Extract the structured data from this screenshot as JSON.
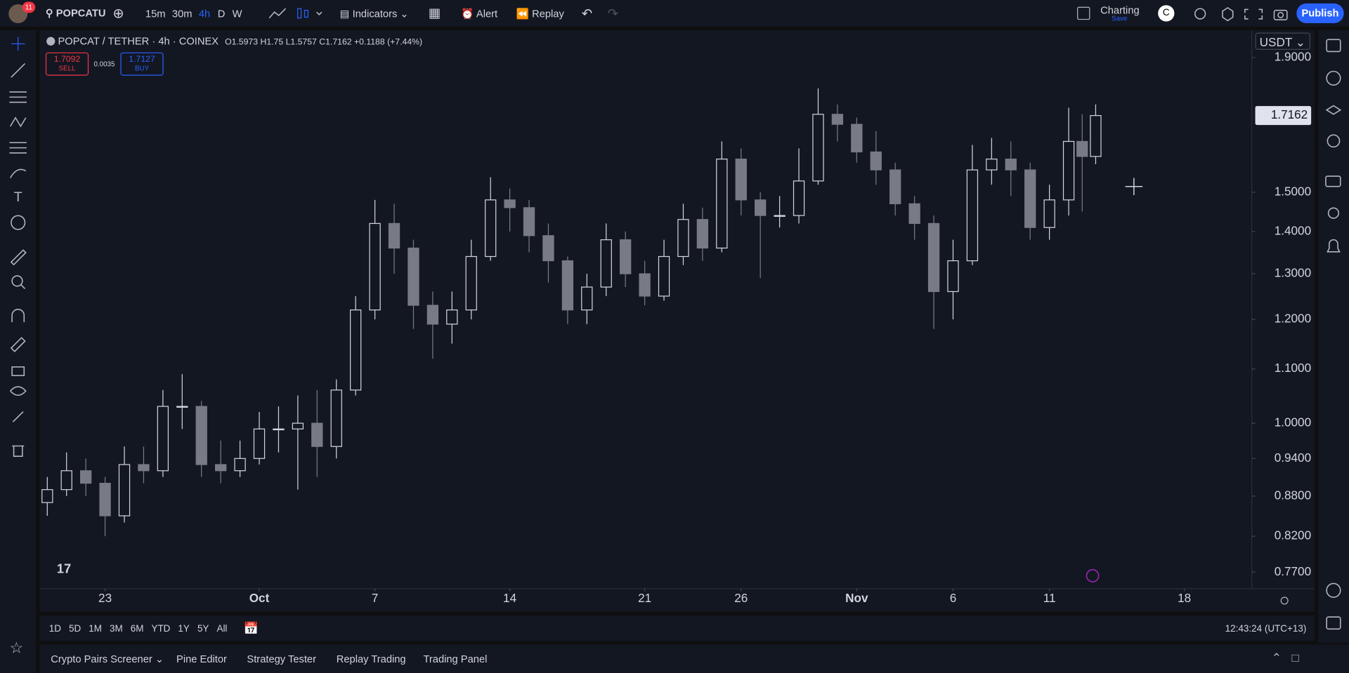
{
  "topbar": {
    "badge": "11",
    "symbol": "POPCATU",
    "intervals": [
      "15m",
      "30m",
      "4h",
      "D",
      "W"
    ],
    "indicators": "Indicators",
    "alert": "Alert",
    "replay": "Replay",
    "layout": "Charting",
    "save": "Save",
    "avatar": "C",
    "publish": "Publish"
  },
  "legend": {
    "title": "POPCAT / TETHER · 4h · COINEX",
    "labels": [
      "O",
      "H",
      "L",
      "C"
    ],
    "change": "+0.1188 (+7.44%)",
    "sell": "1.7092",
    "sell_label": "SELL",
    "spread": "0.0035",
    "buy": "1.7127",
    "buy_label": "BUY"
  },
  "currency": "USDT",
  "ranges": [
    "1D",
    "5D",
    "1M",
    "3M",
    "6M",
    "YTD",
    "1Y",
    "5Y",
    "All"
  ],
  "clock": "12:43:24 (UTC+13)",
  "tabs": [
    "Crypto Pairs Screener",
    "Pine Editor",
    "Strategy Tester",
    "Replay Trading",
    "Trading Panel"
  ],
  "chart_data": {
    "type": "candlestick",
    "log_scale": true,
    "grid": false,
    "up_color": "#d1d4dc",
    "down_color": "#787b86",
    "xlim": [
      19.6,
      82.5
    ],
    "xticks": [
      23,
      {
        "value": 31,
        "label": "Oct"
      },
      {
        "value": 37,
        "label": "7"
      },
      {
        "value": 44,
        "label": "14"
      },
      {
        "value": 51,
        "label": "21"
      },
      {
        "value": 56,
        "label": "26"
      },
      {
        "value": 62,
        "label": "Nov"
      },
      {
        "value": 67,
        "label": "6"
      },
      {
        "value": 72,
        "label": "11"
      },
      {
        "value": 79,
        "label": "18"
      }
    ],
    "ylim": [
      0.748,
      1.994
    ],
    "yticks": [
      {
        "value": 0.77,
        "label": "0.7700"
      },
      {
        "value": 0.82,
        "label": "0.8200"
      },
      {
        "value": 0.88,
        "label": "0.8800"
      },
      {
        "value": 0.94,
        "label": "0.9400"
      },
      {
        "value": 1,
        "label": "1.0000"
      },
      {
        "value": 1.1,
        "label": "1.1000"
      },
      {
        "value": 1.2,
        "label": "1.2000"
      },
      {
        "value": 1.3,
        "label": "1.3000"
      },
      {
        "value": 1.4,
        "label": "1.4000"
      },
      {
        "value": 1.5,
        "label": "1.5000"
      },
      {
        "value": 1.9,
        "label": "1.9000"
      }
    ],
    "candles": [
      {
        "x": 20,
        "open": 0.87,
        "high": 0.91,
        "low": 0.85,
        "close": 0.89
      },
      {
        "x": 21,
        "open": 0.89,
        "high": 0.95,
        "low": 0.88,
        "close": 0.92
      },
      {
        "x": 22,
        "open": 0.92,
        "high": 0.94,
        "low": 0.88,
        "close": 0.9
      },
      {
        "x": 23,
        "open": 0.9,
        "high": 0.91,
        "low": 0.82,
        "close": 0.85
      },
      {
        "x": 24,
        "open": 0.85,
        "high": 0.96,
        "low": 0.84,
        "close": 0.93
      },
      {
        "x": 25,
        "open": 0.93,
        "high": 0.96,
        "low": 0.9,
        "close": 0.92
      },
      {
        "x": 26,
        "open": 0.92,
        "high": 1.06,
        "low": 0.91,
        "close": 1.03
      },
      {
        "x": 27,
        "open": 1.03,
        "high": 1.09,
        "low": 0.99,
        "close": 1.03
      },
      {
        "x": 28,
        "open": 1.03,
        "high": 1.04,
        "low": 0.91,
        "close": 0.93
      },
      {
        "x": 29,
        "open": 0.93,
        "high": 0.97,
        "low": 0.9,
        "close": 0.92
      },
      {
        "x": 30,
        "open": 0.92,
        "high": 0.97,
        "low": 0.91,
        "close": 0.94
      },
      {
        "x": 31,
        "open": 0.94,
        "high": 1.02,
        "low": 0.93,
        "close": 0.99
      },
      {
        "x": 32,
        "open": 0.99,
        "high": 1.03,
        "low": 0.95,
        "close": 0.99
      },
      {
        "x": 33,
        "open": 0.99,
        "high": 1.05,
        "low": 0.89,
        "close": 1.0
      },
      {
        "x": 34,
        "open": 1.0,
        "high": 1.06,
        "low": 0.91,
        "close": 0.96
      },
      {
        "x": 35,
        "open": 0.96,
        "high": 1.08,
        "low": 0.94,
        "close": 1.06
      },
      {
        "x": 36,
        "open": 1.06,
        "high": 1.25,
        "low": 1.05,
        "close": 1.22
      },
      {
        "x": 37,
        "open": 1.22,
        "high": 1.48,
        "low": 1.2,
        "close": 1.42
      },
      {
        "x": 38,
        "open": 1.42,
        "high": 1.47,
        "low": 1.3,
        "close": 1.36
      },
      {
        "x": 39,
        "open": 1.36,
        "high": 1.38,
        "low": 1.18,
        "close": 1.23
      },
      {
        "x": 40,
        "open": 1.23,
        "high": 1.26,
        "low": 1.12,
        "close": 1.19
      },
      {
        "x": 41,
        "open": 1.19,
        "high": 1.26,
        "low": 1.15,
        "close": 1.22
      },
      {
        "x": 42,
        "open": 1.22,
        "high": 1.38,
        "low": 1.2,
        "close": 1.34
      },
      {
        "x": 43,
        "open": 1.34,
        "high": 1.54,
        "low": 1.33,
        "close": 1.48
      },
      {
        "x": 44,
        "open": 1.48,
        "high": 1.51,
        "low": 1.4,
        "close": 1.46
      },
      {
        "x": 45,
        "open": 1.46,
        "high": 1.48,
        "low": 1.35,
        "close": 1.39
      },
      {
        "x": 46,
        "open": 1.39,
        "high": 1.42,
        "low": 1.28,
        "close": 1.33
      },
      {
        "x": 47,
        "open": 1.33,
        "high": 1.34,
        "low": 1.19,
        "close": 1.22
      },
      {
        "x": 48,
        "open": 1.22,
        "high": 1.3,
        "low": 1.19,
        "close": 1.27
      },
      {
        "x": 49,
        "open": 1.27,
        "high": 1.42,
        "low": 1.25,
        "close": 1.38
      },
      {
        "x": 50,
        "open": 1.38,
        "high": 1.4,
        "low": 1.27,
        "close": 1.3
      },
      {
        "x": 51,
        "open": 1.3,
        "high": 1.33,
        "low": 1.23,
        "close": 1.25
      },
      {
        "x": 52,
        "open": 1.25,
        "high": 1.38,
        "low": 1.24,
        "close": 1.34
      },
      {
        "x": 53,
        "open": 1.34,
        "high": 1.47,
        "low": 1.32,
        "close": 1.43
      },
      {
        "x": 54,
        "open": 1.43,
        "high": 1.46,
        "low": 1.33,
        "close": 1.36
      },
      {
        "x": 55,
        "open": 1.36,
        "high": 1.64,
        "low": 1.35,
        "close": 1.59
      },
      {
        "x": 56,
        "open": 1.59,
        "high": 1.62,
        "low": 1.44,
        "close": 1.48
      },
      {
        "x": 57,
        "open": 1.48,
        "high": 1.5,
        "low": 1.29,
        "close": 1.44
      },
      {
        "x": 58,
        "open": 1.44,
        "high": 1.49,
        "low": 1.41,
        "close": 1.44
      },
      {
        "x": 59,
        "open": 1.44,
        "high": 1.62,
        "low": 1.42,
        "close": 1.53
      },
      {
        "x": 60,
        "open": 1.53,
        "high": 1.8,
        "low": 1.52,
        "close": 1.72
      },
      {
        "x": 61,
        "open": 1.72,
        "high": 1.75,
        "low": 1.64,
        "close": 1.69
      },
      {
        "x": 62,
        "open": 1.69,
        "high": 1.71,
        "low": 1.58,
        "close": 1.61
      },
      {
        "x": 63,
        "open": 1.61,
        "high": 1.67,
        "low": 1.52,
        "close": 1.56
      },
      {
        "x": 64,
        "open": 1.56,
        "high": 1.58,
        "low": 1.44,
        "close": 1.47
      },
      {
        "x": 65,
        "open": 1.47,
        "high": 1.49,
        "low": 1.38,
        "close": 1.42
      },
      {
        "x": 66,
        "open": 1.42,
        "high": 1.44,
        "low": 1.18,
        "close": 1.26
      },
      {
        "x": 67,
        "open": 1.26,
        "high": 1.38,
        "low": 1.2,
        "close": 1.33
      },
      {
        "x": 68,
        "open": 1.33,
        "high": 1.63,
        "low": 1.32,
        "close": 1.56
      },
      {
        "x": 69,
        "open": 1.56,
        "high": 1.65,
        "low": 1.52,
        "close": 1.59
      },
      {
        "x": 70,
        "open": 1.59,
        "high": 1.64,
        "low": 1.49,
        "close": 1.56
      },
      {
        "x": 71,
        "open": 1.56,
        "high": 1.58,
        "low": 1.38,
        "close": 1.41
      },
      {
        "x": 72,
        "open": 1.41,
        "high": 1.52,
        "low": 1.38,
        "close": 1.48
      },
      {
        "x": 73,
        "open": 1.48,
        "high": 1.74,
        "low": 1.44,
        "close": 1.64
      },
      {
        "x": 73.7,
        "open": 1.64,
        "high": 1.72,
        "low": 1.45,
        "close": 1.5973
      },
      {
        "x": 74.4,
        "open": 1.5973,
        "high": 1.75,
        "low": 1.5757,
        "close": 1.7162
      }
    ]
  }
}
